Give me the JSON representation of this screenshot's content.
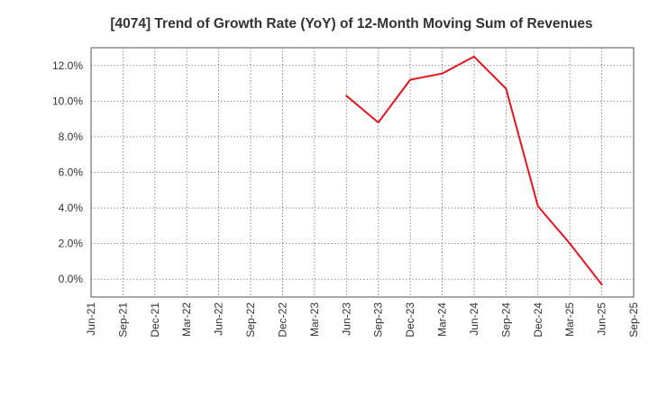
{
  "chart_data": {
    "type": "line",
    "title": "[4074]  Trend of Growth Rate (YoY) of 12-Month Moving Sum of Revenues",
    "xlabel": "",
    "ylabel": "",
    "categories": [
      "Jun-21",
      "Sep-21",
      "Dec-21",
      "Mar-22",
      "Jun-22",
      "Sep-22",
      "Dec-22",
      "Mar-23",
      "Jun-23",
      "Sep-23",
      "Dec-23",
      "Mar-24",
      "Jun-24",
      "Sep-24",
      "Dec-24",
      "Mar-25",
      "Jun-25",
      "Sep-25"
    ],
    "y_ticks": [
      0,
      2,
      4,
      6,
      8,
      10,
      12
    ],
    "y_tick_labels": [
      "0.0%",
      "2.0%",
      "4.0%",
      "6.0%",
      "8.0%",
      "10.0%",
      "12.0%"
    ],
    "ylim": [
      -1.0,
      13.0
    ],
    "grid": true,
    "series": [
      {
        "name": "Growth Rate (YoY)",
        "color": "#e8141b",
        "values": [
          null,
          null,
          null,
          null,
          null,
          null,
          null,
          null,
          10.3,
          8.8,
          11.2,
          11.55,
          12.5,
          10.7,
          4.1,
          2.0,
          -0.3,
          null
        ]
      }
    ]
  }
}
